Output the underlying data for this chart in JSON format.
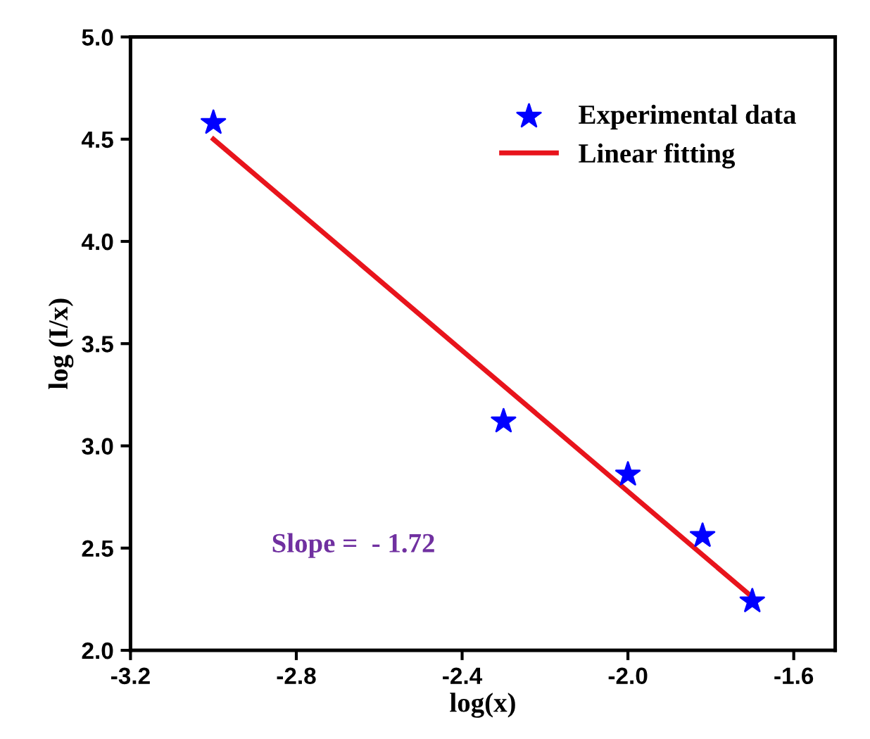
{
  "chart_data": {
    "type": "scatter",
    "xlabel": "log(x)",
    "ylabel": "log (I/x)",
    "xlim": [
      -3.2,
      -1.5
    ],
    "xticks": [
      -3.2,
      -2.8,
      -2.4,
      {
        "value": -2,
        "label": "-2.0"
      },
      -1.6
    ],
    "ylim": [
      2,
      5
    ],
    "yticks": [
      {
        "value": 2,
        "label": "2.0"
      },
      2.5,
      {
        "value": 3,
        "label": "3.0"
      },
      3.5,
      {
        "value": 4,
        "label": "4.0"
      },
      4.5,
      {
        "value": 5,
        "label": "5.0"
      }
    ],
    "series": [
      {
        "name": "Experimental data",
        "color": "#0000ff",
        "marker": "star",
        "x": [
          -3.0,
          -2.3,
          -2.0,
          -1.82,
          -1.7
        ],
        "values": [
          4.58,
          3.12,
          2.86,
          2.56,
          2.24
        ]
      },
      {
        "name": "Linear fitting",
        "type": "line",
        "color": "#e8141c",
        "marker": "none",
        "x": [
          -3.0,
          -1.7
        ],
        "values": [
          4.5,
          2.26
        ]
      }
    ],
    "annotations": [
      "Slope =  - 1.72"
    ],
    "legend": "top right",
    "grid": false
  }
}
